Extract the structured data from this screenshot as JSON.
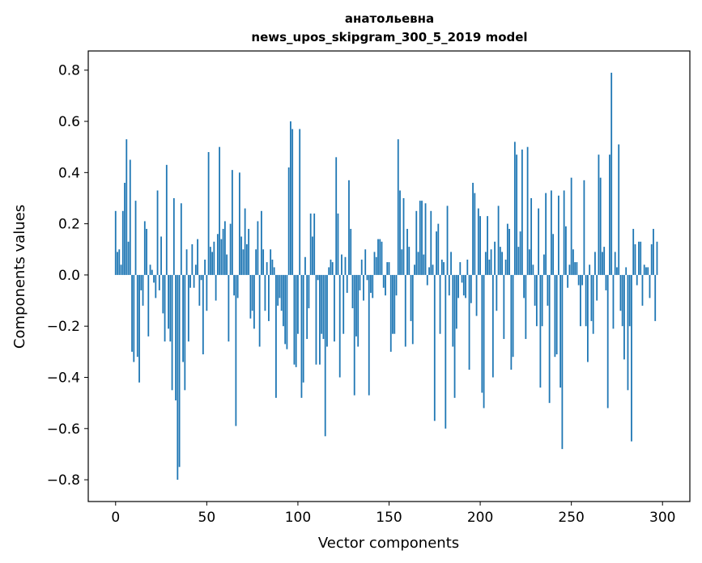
{
  "chart_data": {
    "type": "bar",
    "title_line1": "анатольевна",
    "title_line2": "news_upos_skipgram_300_5_2019 model",
    "xlabel": "Vector components",
    "ylabel": "Components values",
    "xlim": [
      -15,
      315
    ],
    "ylim": [
      -0.885,
      0.875
    ],
    "xticks": [
      0,
      50,
      100,
      150,
      200,
      250,
      300
    ],
    "xtick_labels": [
      "0",
      "50",
      "100",
      "150",
      "200",
      "250",
      "300"
    ],
    "yticks": [
      -0.8,
      -0.6,
      -0.4,
      -0.2,
      0.0,
      0.2,
      0.4,
      0.6,
      0.8
    ],
    "ytick_labels": [
      "−0.8",
      "−0.6",
      "−0.4",
      "−0.2",
      "0.0",
      "0.2",
      "0.4",
      "0.6",
      "0.8"
    ],
    "bar_color": "#1f77b4",
    "grid": false,
    "values": [
      0.25,
      0.09,
      0.1,
      0.04,
      0.25,
      0.36,
      0.53,
      0.13,
      0.45,
      -0.3,
      -0.34,
      0.29,
      -0.32,
      -0.42,
      -0.06,
      -0.12,
      0.21,
      0.18,
      -0.24,
      0.04,
      0.02,
      -0.03,
      -0.09,
      0.33,
      -0.06,
      0.15,
      -0.15,
      -0.26,
      0.43,
      -0.21,
      -0.26,
      -0.45,
      0.3,
      -0.49,
      -0.8,
      -0.75,
      0.28,
      -0.34,
      -0.45,
      0.1,
      -0.26,
      -0.05,
      0.12,
      -0.05,
      0.04,
      0.14,
      -0.12,
      -0.02,
      -0.31,
      0.06,
      -0.14,
      0.48,
      0.11,
      0.09,
      0.13,
      -0.1,
      0.16,
      0.5,
      0.14,
      0.18,
      0.21,
      0.08,
      -0.26,
      0.2,
      0.41,
      -0.08,
      -0.59,
      -0.09,
      0.4,
      0.15,
      0.1,
      0.26,
      0.12,
      0.18,
      -0.17,
      -0.14,
      -0.21,
      0.1,
      0.21,
      -0.28,
      0.25,
      0.1,
      -0.14,
      0.05,
      -0.18,
      0.1,
      0.06,
      0.03,
      -0.48,
      -0.12,
      -0.09,
      -0.14,
      -0.2,
      -0.27,
      -0.29,
      0.42,
      0.6,
      0.57,
      -0.35,
      -0.36,
      -0.23,
      0.57,
      -0.48,
      -0.42,
      0.07,
      -0.25,
      -0.13,
      0.24,
      0.15,
      0.24,
      -0.35,
      -0.02,
      -0.35,
      -0.23,
      -0.25,
      -0.63,
      -0.28,
      0.03,
      0.06,
      0.05,
      -0.26,
      0.46,
      0.24,
      -0.4,
      0.08,
      -0.23,
      0.07,
      -0.07,
      0.37,
      0.18,
      -0.13,
      -0.47,
      -0.24,
      -0.28,
      -0.06,
      0.06,
      -0.1,
      0.1,
      -0.02,
      -0.47,
      -0.07,
      -0.09,
      0.09,
      0.07,
      0.14,
      0.14,
      0.13,
      -0.05,
      -0.08,
      0.05,
      0.05,
      -0.3,
      -0.23,
      -0.23,
      -0.08,
      0.53,
      0.33,
      0.1,
      0.3,
      -0.28,
      0.18,
      0.11,
      -0.18,
      -0.27,
      0.04,
      0.25,
      0.09,
      0.29,
      0.29,
      0.08,
      0.28,
      -0.04,
      0.03,
      0.25,
      0.04,
      -0.57,
      0.17,
      0.2,
      -0.23,
      0.06,
      0.05,
      -0.6,
      0.27,
      -0.08,
      0.09,
      -0.28,
      -0.48,
      -0.21,
      -0.09,
      0.05,
      -0.03,
      -0.08,
      -0.09,
      0.06,
      -0.37,
      -0.11,
      0.36,
      0.32,
      -0.16,
      0.26,
      0.23,
      -0.46,
      -0.52,
      0.09,
      0.23,
      0.06,
      0.1,
      -0.4,
      0.13,
      -0.14,
      0.27,
      0.11,
      0.09,
      -0.25,
      0.06,
      0.2,
      0.18,
      -0.37,
      -0.32,
      0.52,
      0.47,
      0.11,
      0.17,
      0.49,
      -0.09,
      -0.25,
      0.5,
      0.1,
      0.3,
      0.04,
      -0.12,
      -0.2,
      0.26,
      -0.44,
      -0.2,
      0.08,
      0.32,
      -0.12,
      -0.5,
      0.33,
      0.16,
      -0.32,
      -0.31,
      0.31,
      -0.44,
      -0.68,
      0.33,
      0.19,
      -0.05,
      0.04,
      0.38,
      0.1,
      0.05,
      0.05,
      -0.04,
      -0.2,
      -0.04,
      0.37,
      -0.2,
      -0.34,
      0.04,
      -0.18,
      -0.23,
      0.09,
      -0.1,
      0.47,
      0.38,
      0.09,
      0.11,
      -0.06,
      -0.52,
      0.47,
      0.79,
      -0.21,
      0.09,
      0.03,
      0.51,
      -0.14,
      -0.2,
      -0.33,
      0.03,
      -0.45,
      -0.2,
      -0.65,
      0.18,
      0.12,
      -0.04,
      0.13,
      0.13,
      -0.12,
      0.04,
      0.03,
      0.03,
      -0.09,
      0.12,
      0.18,
      -0.18,
      0.13
    ]
  }
}
